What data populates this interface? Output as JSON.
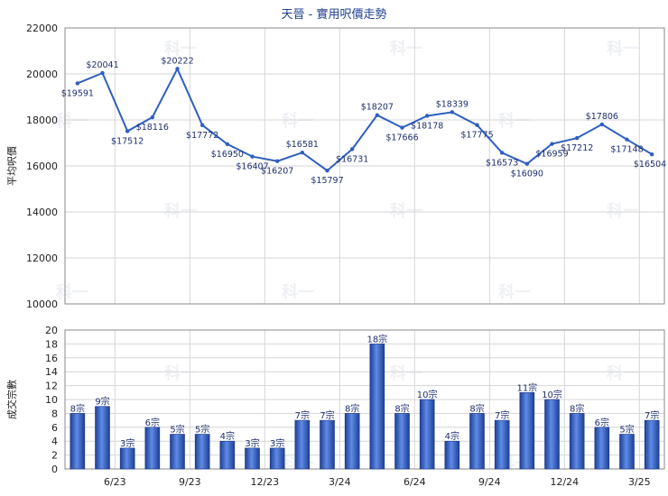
{
  "chart_data": [
    {
      "type": "line",
      "title": "天晉 - 實用呎價走勢",
      "ylabel": "平均呎價",
      "ylim": [
        10000,
        22000
      ],
      "yticks": [
        "10000",
        "12000",
        "14000",
        "16000",
        "18000",
        "20000",
        "22000"
      ],
      "point_labels": [
        "$19591",
        "$20041",
        "$17512",
        "$18116",
        "$20222",
        "$17772",
        "$16950",
        "$16407",
        "$16207",
        "$16581",
        "$15797",
        "$16731",
        "$18207",
        "$17666",
        "$18178",
        "$18339",
        "$17775",
        "$16573",
        "$16090",
        "$16959",
        "$17212",
        "$17806",
        "$17148",
        "$16504"
      ],
      "values": [
        19591,
        20041,
        17512,
        18116,
        20222,
        17772,
        16950,
        16407,
        16207,
        16581,
        15797,
        16731,
        18207,
        17666,
        18178,
        18339,
        17775,
        16573,
        16090,
        16959,
        17212,
        17806,
        17148,
        16504
      ],
      "line_color": "#2e5fc0",
      "grid": true
    },
    {
      "type": "bar",
      "ylabel": "成交宗數",
      "ylim": [
        0,
        20
      ],
      "yticks": [
        "0",
        "2",
        "4",
        "6",
        "8",
        "10",
        "12",
        "14",
        "16",
        "18",
        "20"
      ],
      "xticks": [
        "6/23",
        "9/23",
        "12/23",
        "3/24",
        "6/24",
        "9/24",
        "12/24",
        "3/25"
      ],
      "values": [
        8,
        9,
        3,
        6,
        5,
        5,
        4,
        3,
        3,
        7,
        7,
        8,
        18,
        8,
        10,
        4,
        8,
        7,
        11,
        10,
        8,
        6,
        5,
        7
      ],
      "bar_labels": [
        "8宗",
        "9宗",
        "3宗",
        "6宗",
        "5宗",
        "5宗",
        "4宗",
        "3宗",
        "3宗",
        "7宗",
        "7宗",
        "8宗",
        "18宗",
        "8宗",
        "10宗",
        "4宗",
        "8宗",
        "7宗",
        "11宗",
        "10宗",
        "8宗",
        "6宗",
        "5宗",
        "7宗"
      ],
      "bar_color": "#2f5fc4",
      "grid": true
    }
  ],
  "watermark": "科一"
}
